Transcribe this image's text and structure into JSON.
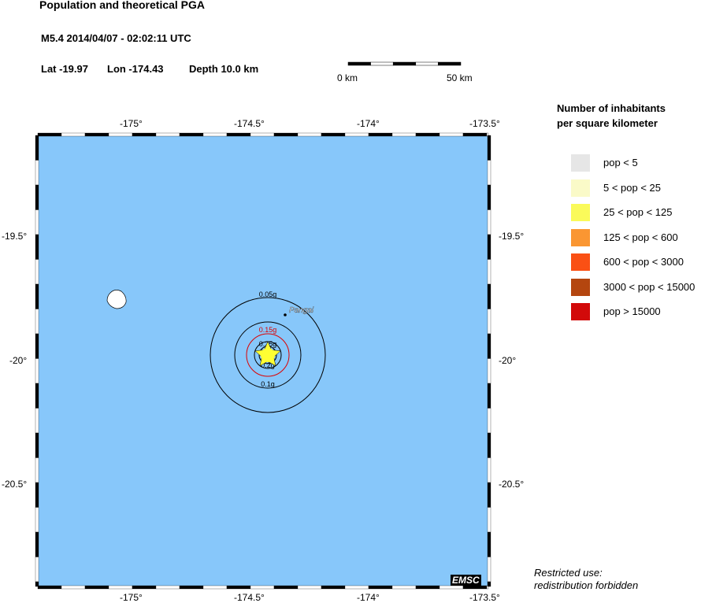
{
  "header": {
    "title": "Population and theoretical PGA",
    "event": "M5.4  2014/04/07 - 02:02:11 UTC",
    "lat": "Lat -19.97",
    "lon": "Lon -174.43",
    "depth": "Depth  10.0 km"
  },
  "scale": {
    "left": "0 km",
    "right": "50 km"
  },
  "axes": {
    "lon_ticks": [
      "-175°",
      "-174.5°",
      "-174°",
      "-173.5°"
    ],
    "lat_ticks": [
      "-19.5°",
      "-20°",
      "-20.5°"
    ]
  },
  "map": {
    "water_color": "#87c7fa",
    "epicenter_color": "#ffff33",
    "city": "Pangai",
    "contours": [
      {
        "label": "0.05g",
        "color": "#000000"
      },
      {
        "label": "0.1g",
        "color": "#000000"
      },
      {
        "label": "0.15g",
        "color": "#dd0000"
      },
      {
        "label": "0.2g",
        "color": "#000000"
      },
      {
        "label": "0.25g",
        "color": "#000000"
      }
    ]
  },
  "legend": {
    "title1": "Number of inhabitants",
    "title2": "per square kilometer",
    "items": [
      {
        "label": "pop < 5",
        "color": "#e6e6e6"
      },
      {
        "label": "5 < pop < 25",
        "color": "#fafac8"
      },
      {
        "label": "25 < pop < 125",
        "color": "#fafa5a"
      },
      {
        "label": "125 < pop < 600",
        "color": "#fa9632"
      },
      {
        "label": "600 < pop < 3000",
        "color": "#fa5014"
      },
      {
        "label": "3000 < pop < 15000",
        "color": "#b4460f"
      },
      {
        "label": "pop > 15000",
        "color": "#d20a0a"
      }
    ]
  },
  "logo": "EMSC",
  "notice1": "Restricted use:",
  "notice2": "redistribution forbidden"
}
